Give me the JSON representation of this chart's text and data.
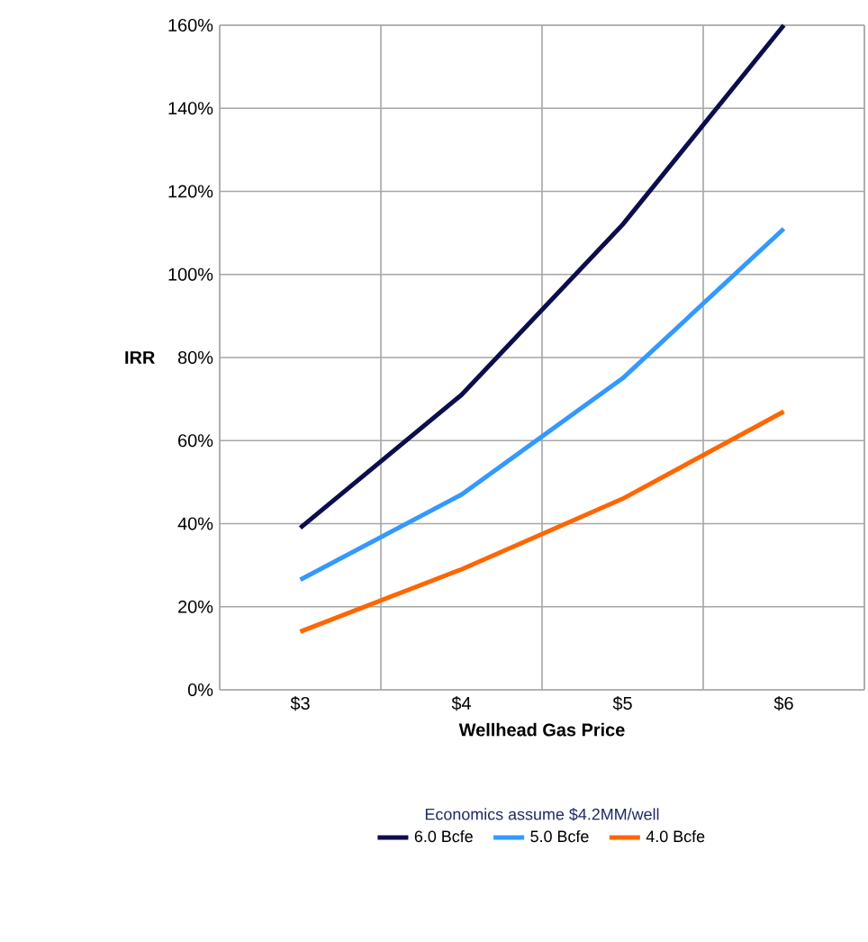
{
  "chart_data": {
    "type": "line",
    "xlabel": "Wellhead Gas Price",
    "ylabel": "IRR",
    "categories": [
      "$3",
      "$4",
      "$5",
      "$6"
    ],
    "series": [
      {
        "name": "6.0 Bcfe",
        "color": "#0d0d4d",
        "values": [
          39,
          71,
          112,
          160
        ]
      },
      {
        "name": "5.0 Bcfe",
        "color": "#3399ff",
        "values": [
          26.5,
          47,
          75,
          111
        ]
      },
      {
        "name": "4.0 Bcfe",
        "color": "#ff6600",
        "values": [
          14,
          29,
          46,
          67
        ]
      }
    ],
    "ylim": [
      0,
      160
    ],
    "yticks": [
      {
        "value": 0,
        "label": "0%"
      },
      {
        "value": 20,
        "label": "20%"
      },
      {
        "value": 40,
        "label": "40%"
      },
      {
        "value": 60,
        "label": "60%"
      },
      {
        "value": 80,
        "label": "80%"
      },
      {
        "value": 100,
        "label": "100%"
      },
      {
        "value": 120,
        "label": "120%"
      },
      {
        "value": 140,
        "label": "140%"
      },
      {
        "value": 160,
        "label": "160%"
      }
    ],
    "grid": true,
    "legend": "bottom",
    "marker": "none",
    "line_style": "solid",
    "annotations": [
      "Economics assume $4.2MM/well"
    ]
  }
}
